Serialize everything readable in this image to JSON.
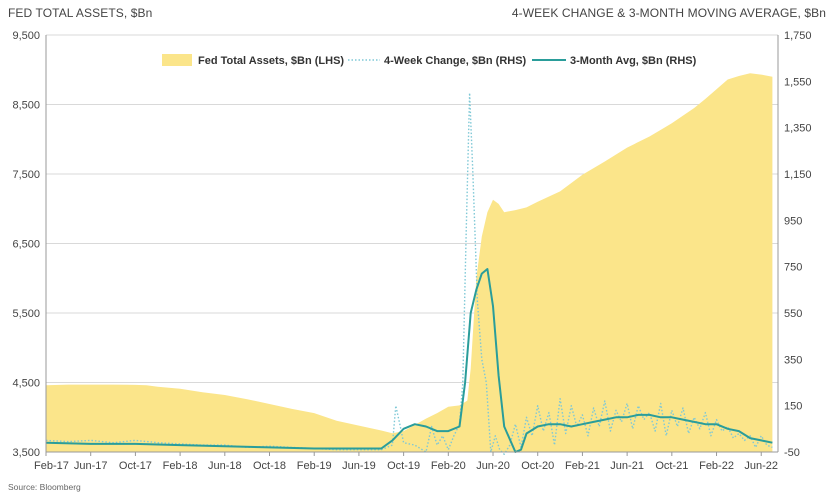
{
  "header": {
    "left_title": "FED TOTAL ASSETS, $Bn",
    "right_title": "4-WEEK CHANGE & 3-MONTH MOVING AVERAGE, $Bn"
  },
  "source": "Source: Bloomberg",
  "colors": {
    "assets_fill": "#fbe58a",
    "four_week": "#7ec8d6",
    "three_month": "#2a9d9a",
    "grid": "#d9d9d9"
  },
  "chart_data": {
    "type": "area",
    "title": "FED TOTAL ASSETS, $Bn",
    "right_title": "4-WEEK CHANGE & 3-MONTH MOVING AVERAGE, $Bn",
    "x_tick_labels": [
      "Feb-17",
      "Jun-17",
      "Oct-17",
      "Feb-18",
      "Jun-18",
      "Oct-18",
      "Feb-19",
      "Jun-19",
      "Oct-19",
      "Feb-20",
      "Jun-20",
      "Oct-20",
      "Feb-21",
      "Jun-21",
      "Oct-21",
      "Feb-22",
      "Jun-22"
    ],
    "x_tick_months": [
      0,
      4,
      8,
      12,
      16,
      20,
      24,
      28,
      32,
      36,
      40,
      44,
      48,
      52,
      56,
      60,
      64
    ],
    "x_range_months": [
      0,
      65.5
    ],
    "left_axis": {
      "ticks": [
        3500,
        4500,
        5500,
        6500,
        7500,
        8500,
        9500
      ],
      "tick_labels": [
        "3,500",
        "4,500",
        "5,500",
        "6,500",
        "7,500",
        "8,500",
        "9,500"
      ],
      "ylim": [
        3500,
        9500
      ]
    },
    "right_axis": {
      "ticks": [
        -50,
        150,
        350,
        550,
        750,
        950,
        1150,
        1350,
        1550,
        1750
      ],
      "tick_labels": [
        "-50",
        "150",
        "350",
        "550",
        "750",
        "950",
        "1,150",
        "1,350",
        "1,550",
        "1,750"
      ],
      "ylim": [
        -50,
        1750
      ]
    },
    "legend": [
      "Fed Total Assets, $Bn (LHS)",
      "4-Week Change, $Bn (RHS)",
      "3-Month Avg, $Bn (RHS)"
    ],
    "series": [
      {
        "name": "Fed Total Assets, $Bn (LHS)",
        "axis": "left",
        "style": "area",
        "x_months": [
          0,
          2,
          4,
          6,
          8,
          9,
          10,
          12,
          14,
          16,
          18,
          20,
          22,
          24,
          26,
          28,
          30,
          31,
          32,
          33,
          34,
          35,
          36,
          37,
          37.7,
          38,
          38.5,
          39,
          39.5,
          40,
          40.5,
          41,
          42,
          43,
          44,
          46,
          48,
          50,
          52,
          54,
          56,
          58,
          59,
          60,
          61,
          62,
          63,
          64,
          65
        ],
        "values": [
          4460,
          4470,
          4470,
          4470,
          4465,
          4460,
          4440,
          4410,
          4360,
          4320,
          4260,
          4190,
          4120,
          4060,
          3950,
          3880,
          3810,
          3770,
          3800,
          3890,
          3980,
          4060,
          4150,
          4170,
          4240,
          4700,
          6000,
          6600,
          6950,
          7130,
          7070,
          6950,
          6980,
          7020,
          7100,
          7250,
          7490,
          7680,
          7880,
          8040,
          8230,
          8450,
          8580,
          8720,
          8860,
          8910,
          8950,
          8930,
          8900
        ]
      },
      {
        "name": "4-Week Change, $Bn (RHS)",
        "axis": "right",
        "style": "dotted",
        "x_months": [
          0,
          2,
          4,
          6,
          8,
          10,
          12,
          14,
          16,
          18,
          20,
          22,
          24,
          26,
          28,
          30,
          31,
          31.3,
          31.7,
          32,
          33,
          34,
          34.5,
          35,
          35.5,
          36,
          36.5,
          37,
          37.3,
          37.6,
          37.9,
          38.2,
          38.6,
          39,
          39.4,
          39.8,
          40.2,
          40.6,
          41,
          41.5,
          42,
          42.5,
          43,
          43.5,
          44,
          44.5,
          45,
          45.5,
          46,
          46.5,
          47,
          47.5,
          48,
          48.5,
          49,
          49.5,
          50,
          50.5,
          51,
          51.5,
          52,
          52.5,
          53,
          53.5,
          54,
          54.5,
          55,
          55.5,
          56,
          56.5,
          57,
          57.5,
          58,
          58.5,
          59,
          59.5,
          60,
          60.5,
          61,
          61.5,
          62,
          62.5,
          63,
          63.5,
          64,
          64.5,
          65
        ],
        "values": [
          0,
          -5,
          0,
          -10,
          0,
          -10,
          -15,
          -20,
          -20,
          -30,
          -25,
          -30,
          -35,
          -40,
          -40,
          -40,
          -20,
          150,
          60,
          -10,
          -20,
          -50,
          60,
          -20,
          20,
          -40,
          20,
          70,
          250,
          900,
          1500,
          1150,
          600,
          350,
          250,
          -50,
          20,
          -40,
          -60,
          -20,
          70,
          -30,
          100,
          20,
          150,
          40,
          120,
          -20,
          180,
          30,
          150,
          60,
          110,
          20,
          140,
          60,
          170,
          40,
          130,
          80,
          160,
          50,
          150,
          90,
          120,
          40,
          160,
          20,
          130,
          60,
          140,
          30,
          100,
          50,
          120,
          20,
          90,
          40,
          60,
          10,
          30,
          0,
          20,
          -30,
          20,
          -20,
          -30
        ]
      },
      {
        "name": "3-Month Avg, $Bn (RHS)",
        "axis": "right",
        "style": "line",
        "x_months": [
          0,
          4,
          8,
          12,
          16,
          20,
          24,
          28,
          30,
          31,
          32,
          33,
          34,
          35,
          36,
          37,
          37.5,
          38,
          38.5,
          39,
          39.5,
          40,
          40.5,
          41,
          42,
          42.5,
          43,
          44,
          45,
          46,
          47,
          48,
          49,
          50,
          51,
          52,
          53,
          54,
          55,
          56,
          57,
          58,
          59,
          60,
          61,
          62,
          63,
          64,
          65
        ],
        "values": [
          -10,
          -15,
          -15,
          -20,
          -25,
          -30,
          -35,
          -35,
          -35,
          0,
          50,
          70,
          60,
          40,
          40,
          60,
          250,
          550,
          650,
          720,
          740,
          580,
          280,
          60,
          -50,
          -40,
          30,
          60,
          70,
          70,
          60,
          70,
          80,
          90,
          100,
          100,
          110,
          110,
          100,
          100,
          90,
          80,
          70,
          70,
          50,
          40,
          10,
          0,
          -10
        ]
      }
    ]
  }
}
